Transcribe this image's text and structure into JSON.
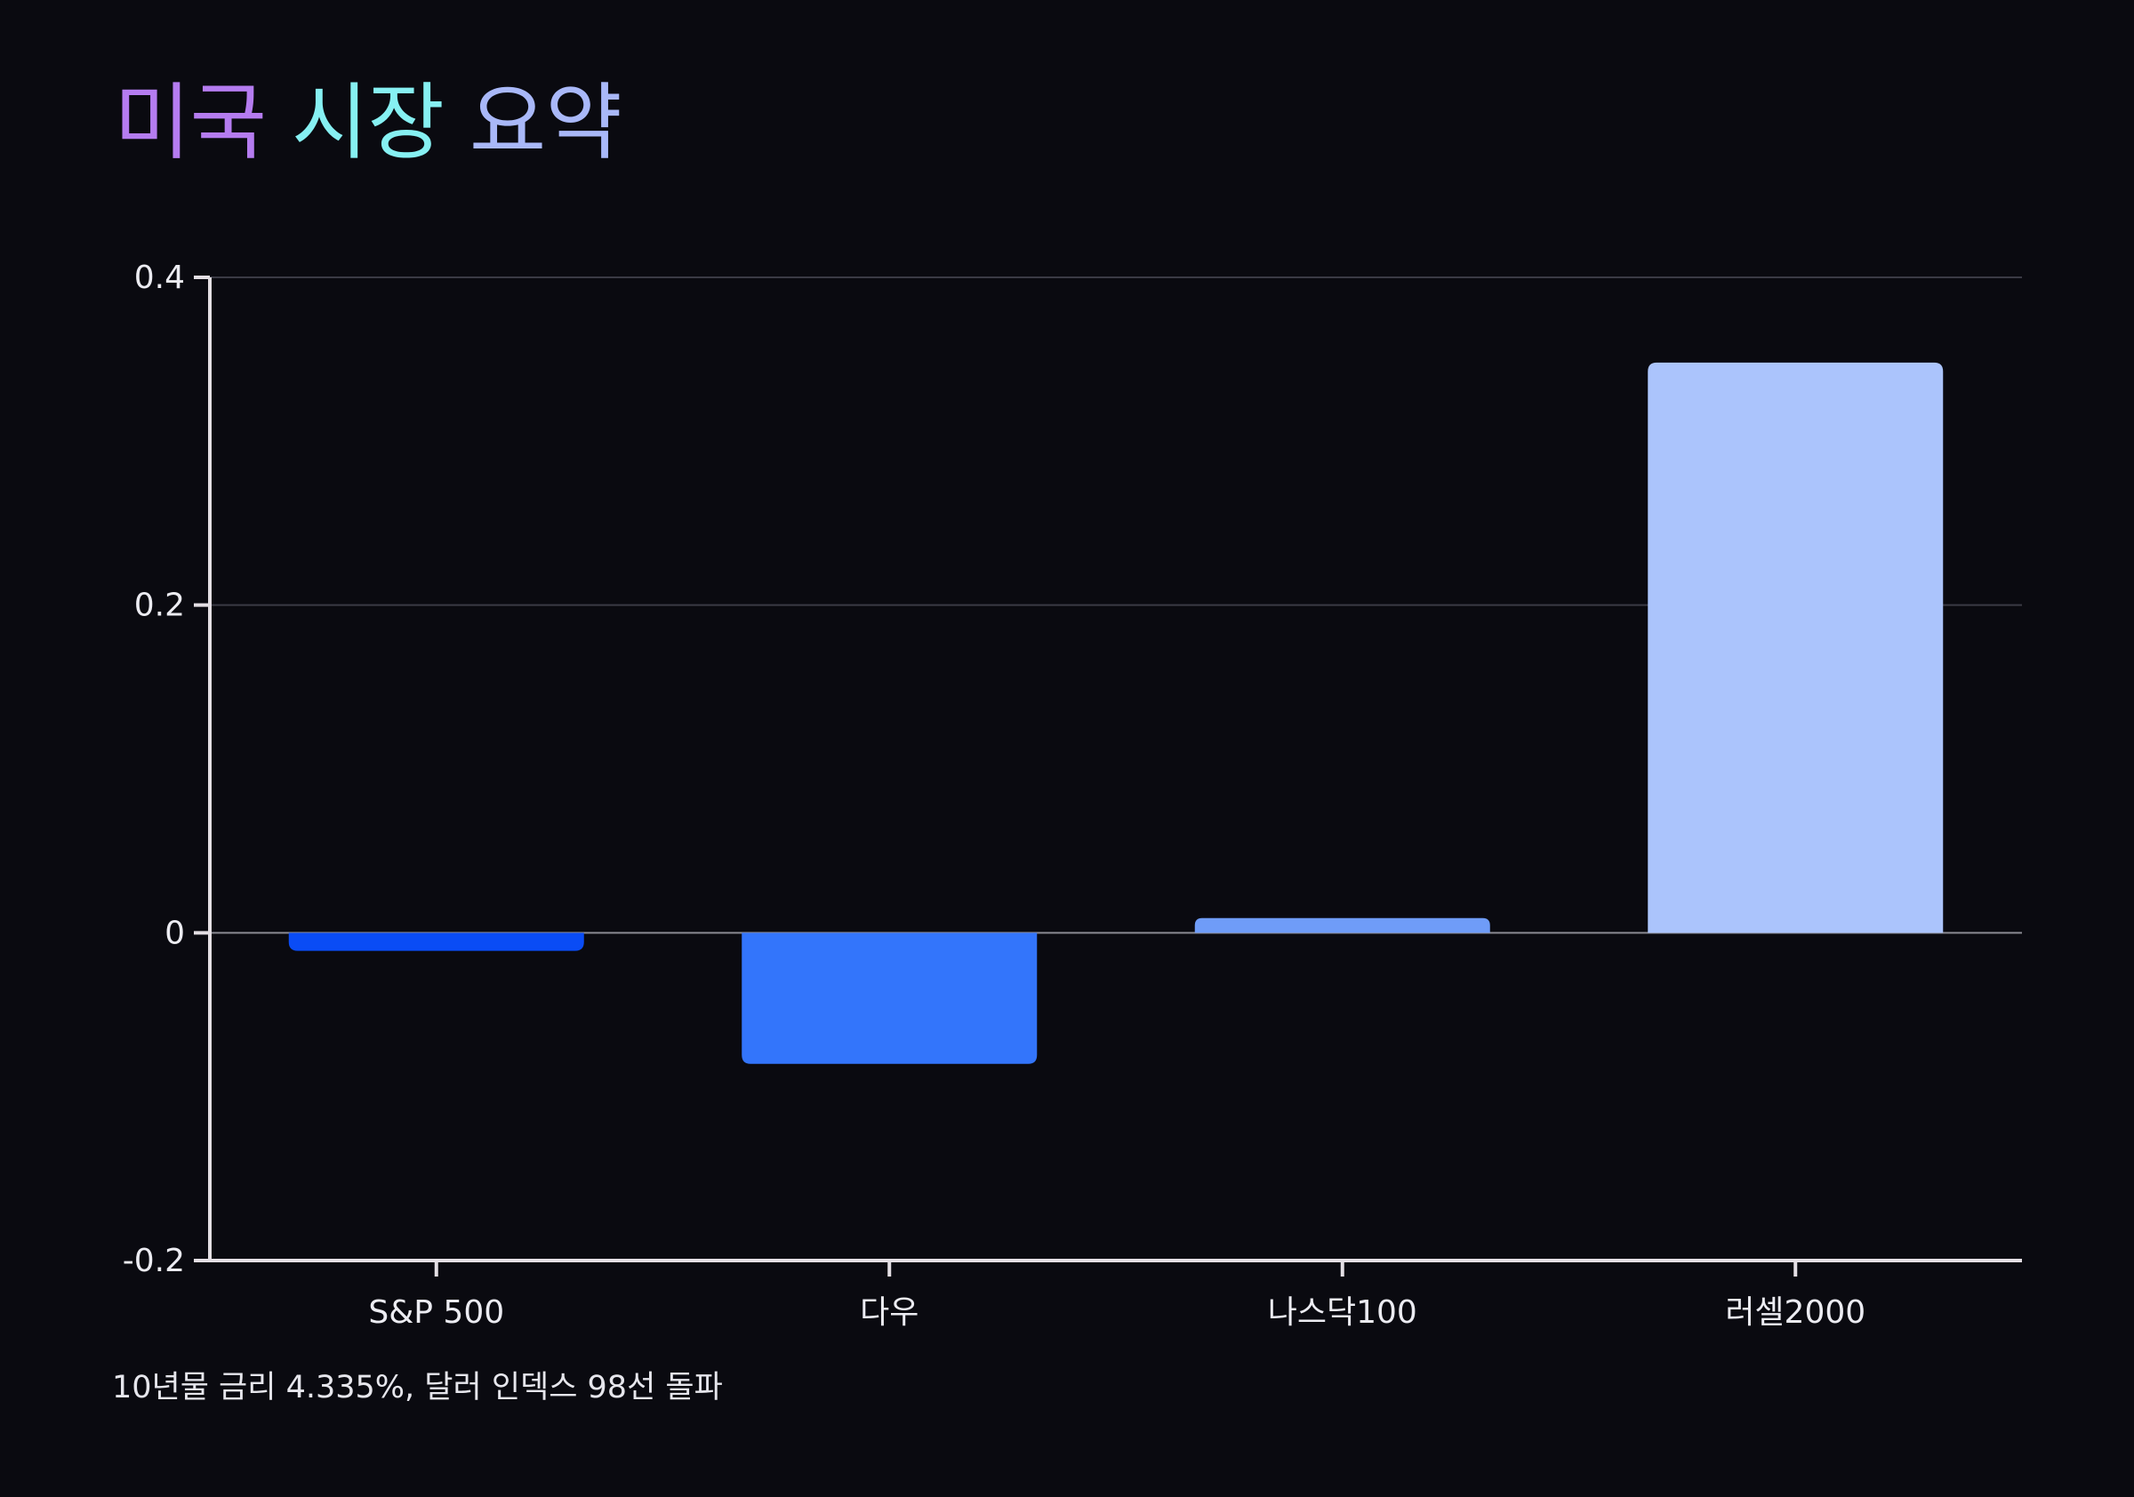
{
  "title": {
    "words": [
      {
        "text": "미국",
        "color": "#b57cf0"
      },
      {
        "text": "시장",
        "color": "#86f0f2"
      },
      {
        "text": "요약",
        "color": "#a9b8f8"
      }
    ]
  },
  "footnote": "10년물 금리 4.335%, 달러 인덱스 98선 돌파",
  "colors": {
    "background": "#0a0a10",
    "axis": "#e4dfe4",
    "grid": "#3a3a44",
    "zero_line": "#8a8a92"
  },
  "chart_data": {
    "type": "bar",
    "title": "미국 시장 요약",
    "xlabel": "",
    "ylabel": "",
    "categories": [
      "S&P 500",
      "다우",
      "나스닥100",
      "러셀2000"
    ],
    "values": [
      -0.011,
      -0.08,
      0.009,
      0.348
    ],
    "bar_colors": [
      "#0a4cf5",
      "#3375fb",
      "#6f9cf8",
      "#abc4fc"
    ],
    "ylim": [
      -0.2,
      0.4
    ],
    "yticks": [
      -0.2,
      0,
      0.2,
      0.4
    ],
    "ytick_labels": [
      "-0.2",
      "0",
      "0.2",
      "0.4"
    ],
    "grid": true
  }
}
